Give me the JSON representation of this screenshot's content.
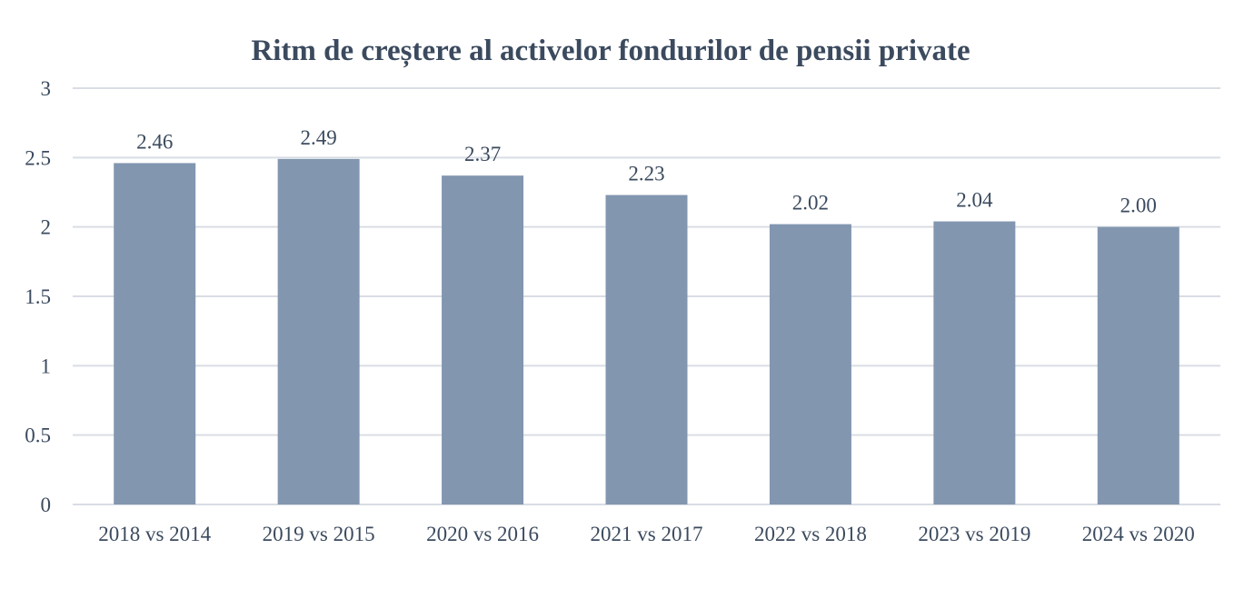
{
  "chart_data": {
    "type": "bar",
    "title": "Ritm de creștere al activelor fondurilor de pensii private",
    "xlabel": "",
    "ylabel": "",
    "categories": [
      "2018 vs 2014",
      "2019 vs 2015",
      "2020 vs 2016",
      "2021 vs 2017",
      "2022 vs 2018",
      "2023 vs 2019",
      "2024 vs 2020"
    ],
    "values": [
      2.46,
      2.49,
      2.37,
      2.23,
      2.02,
      2.04,
      2.0
    ],
    "data_labels": [
      "2.46",
      "2.49",
      "2.37",
      "2.23",
      "2.02",
      "2.04",
      "2.00"
    ],
    "ylim": [
      0,
      3
    ],
    "yticks": [
      "0",
      "0.5",
      "1",
      "1.5",
      "2",
      "2.5",
      "3"
    ],
    "grid": true,
    "legend": "none",
    "colors": {
      "bar": "#8296af",
      "grid": "#d9dde4",
      "text": "#3b4a5e"
    }
  }
}
